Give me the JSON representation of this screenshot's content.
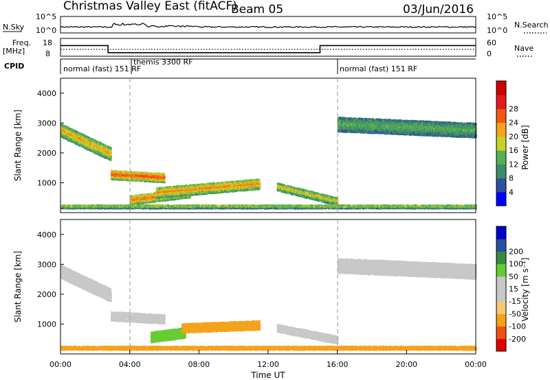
{
  "title": {
    "station": "Christmas Valley East (fitACF)",
    "beam": "Beam 05",
    "date": "03/Jun/2016"
  },
  "colors": {
    "power_scale": [
      "#0000ff",
      "#2e4fa0",
      "#3f8a6a",
      "#55b055",
      "#c8d02a",
      "#f5a21c",
      "#f25a10",
      "#e31a1c",
      "#d00000"
    ],
    "velocity_scale": [
      "#e00000",
      "#f05010",
      "#f5a21c",
      "#f8c870",
      "#c8c8c8",
      "#c8c8c8",
      "#66cc33",
      "#3a8a40",
      "#2a4fa0",
      "#0000cc"
    ],
    "ground_scatter": "#c8c8c8"
  },
  "chart_data": [
    {
      "id": "noise",
      "type": "line",
      "ylabel_left": "N.Sky",
      "ylabel_right": "N.Search",
      "yticks_left": [
        "10^5",
        "10^0"
      ],
      "yticks_right": [
        "10^5",
        "10^0"
      ],
      "legend_right": "N.Search ......"
    },
    {
      "id": "frequency",
      "type": "line",
      "ylabel_left": "Freq.\n[MHz]",
      "yticks_left": [
        "18",
        "8"
      ],
      "yticks_right": [
        "60",
        "0"
      ],
      "legend_right": "Nave ....",
      "x": [
        "00:00",
        "02:45",
        "02:45",
        "15:00",
        "15:00",
        "24:00"
      ],
      "freq_mhz": [
        14.0,
        14.0,
        10.0,
        10.0,
        14.0,
        14.0
      ],
      "ylim": [
        8,
        18
      ]
    },
    {
      "id": "cpid",
      "type": "table",
      "label": "CPID",
      "segments": [
        {
          "start": "00:00",
          "end": "04:00",
          "name": "normal (fast) 151 RF"
        },
        {
          "start": "04:00",
          "end": "16:00",
          "name": "themis 3300 RF"
        },
        {
          "start": "16:00",
          "end": "24:00",
          "name": "normal (fast) 151 RF"
        }
      ]
    },
    {
      "id": "power",
      "type": "heatmap",
      "ylabel": "Slant Range [km]",
      "colorbar_label": "Power [dB]",
      "colorbar_ticks": [
        "4",
        "8",
        "12",
        "16",
        "20",
        "24",
        "28"
      ],
      "ylim": [
        0,
        4500
      ],
      "yticks": [
        "1000",
        "2000",
        "3000",
        "4000"
      ],
      "features": [
        {
          "t_start": 0.0,
          "t_end": 2.9,
          "range_start": 2800,
          "range_end": 2000,
          "width_km": 450,
          "level": 20
        },
        {
          "t_start": 2.9,
          "t_end": 6.0,
          "range_start": 1300,
          "range_end": 1200,
          "width_km": 300,
          "level": 26
        },
        {
          "t_start": 4.0,
          "t_end": 7.5,
          "range_start": 450,
          "range_end": 700,
          "width_km": 300,
          "level": 24
        },
        {
          "t_start": 5.5,
          "t_end": 11.5,
          "range_start": 700,
          "range_end": 1000,
          "width_km": 350,
          "level": 22
        },
        {
          "t_start": 12.5,
          "t_end": 16.0,
          "range_start": 900,
          "range_end": 400,
          "width_km": 250,
          "level": 18
        },
        {
          "t_start": 16.0,
          "t_end": 24.0,
          "range_start": 3000,
          "range_end": 2800,
          "width_km": 500,
          "level": 12
        },
        {
          "t_start": 0.0,
          "t_end": 24.0,
          "range_start": 250,
          "range_end": 250,
          "width_km": 150,
          "level": 16
        }
      ]
    },
    {
      "id": "velocity",
      "type": "heatmap",
      "ylabel": "Slant Range [km]",
      "colorbar_label": "Velocity [m s⁻¹]",
      "colorbar_ticks": [
        "-200",
        "-100",
        "-50",
        "-15",
        "15",
        "50",
        "100",
        "200"
      ],
      "ylim": [
        0,
        4500
      ],
      "yticks": [
        "1000",
        "2000",
        "3000",
        "4000"
      ],
      "xlabel": "Time UT",
      "xticks": [
        "00:00",
        "04:00",
        "08:00",
        "12:00",
        "16:00",
        "20:00",
        "00:00"
      ],
      "features": [
        {
          "t_start": 0.0,
          "t_end": 2.9,
          "range_start": 2800,
          "range_end": 2000,
          "width_km": 450,
          "velocity": 0
        },
        {
          "t_start": 2.9,
          "t_end": 6.0,
          "range_start": 1300,
          "range_end": 1200,
          "width_km": 300,
          "velocity": 0
        },
        {
          "t_start": 5.2,
          "t_end": 7.2,
          "range_start": 600,
          "range_end": 750,
          "width_km": 350,
          "velocity": 40
        },
        {
          "t_start": 7.0,
          "t_end": 11.5,
          "range_start": 900,
          "range_end": 1000,
          "width_km": 300,
          "velocity": -40
        },
        {
          "t_start": 12.5,
          "t_end": 16.0,
          "range_start": 900,
          "range_end": 500,
          "width_km": 250,
          "velocity": 0
        },
        {
          "t_start": 16.0,
          "t_end": 24.0,
          "range_start": 3000,
          "range_end": 2800,
          "width_km": 500,
          "velocity": 0
        },
        {
          "t_start": 0.0,
          "t_end": 24.0,
          "range_start": 250,
          "range_end": 250,
          "width_km": 150,
          "velocity": -40
        }
      ]
    }
  ]
}
